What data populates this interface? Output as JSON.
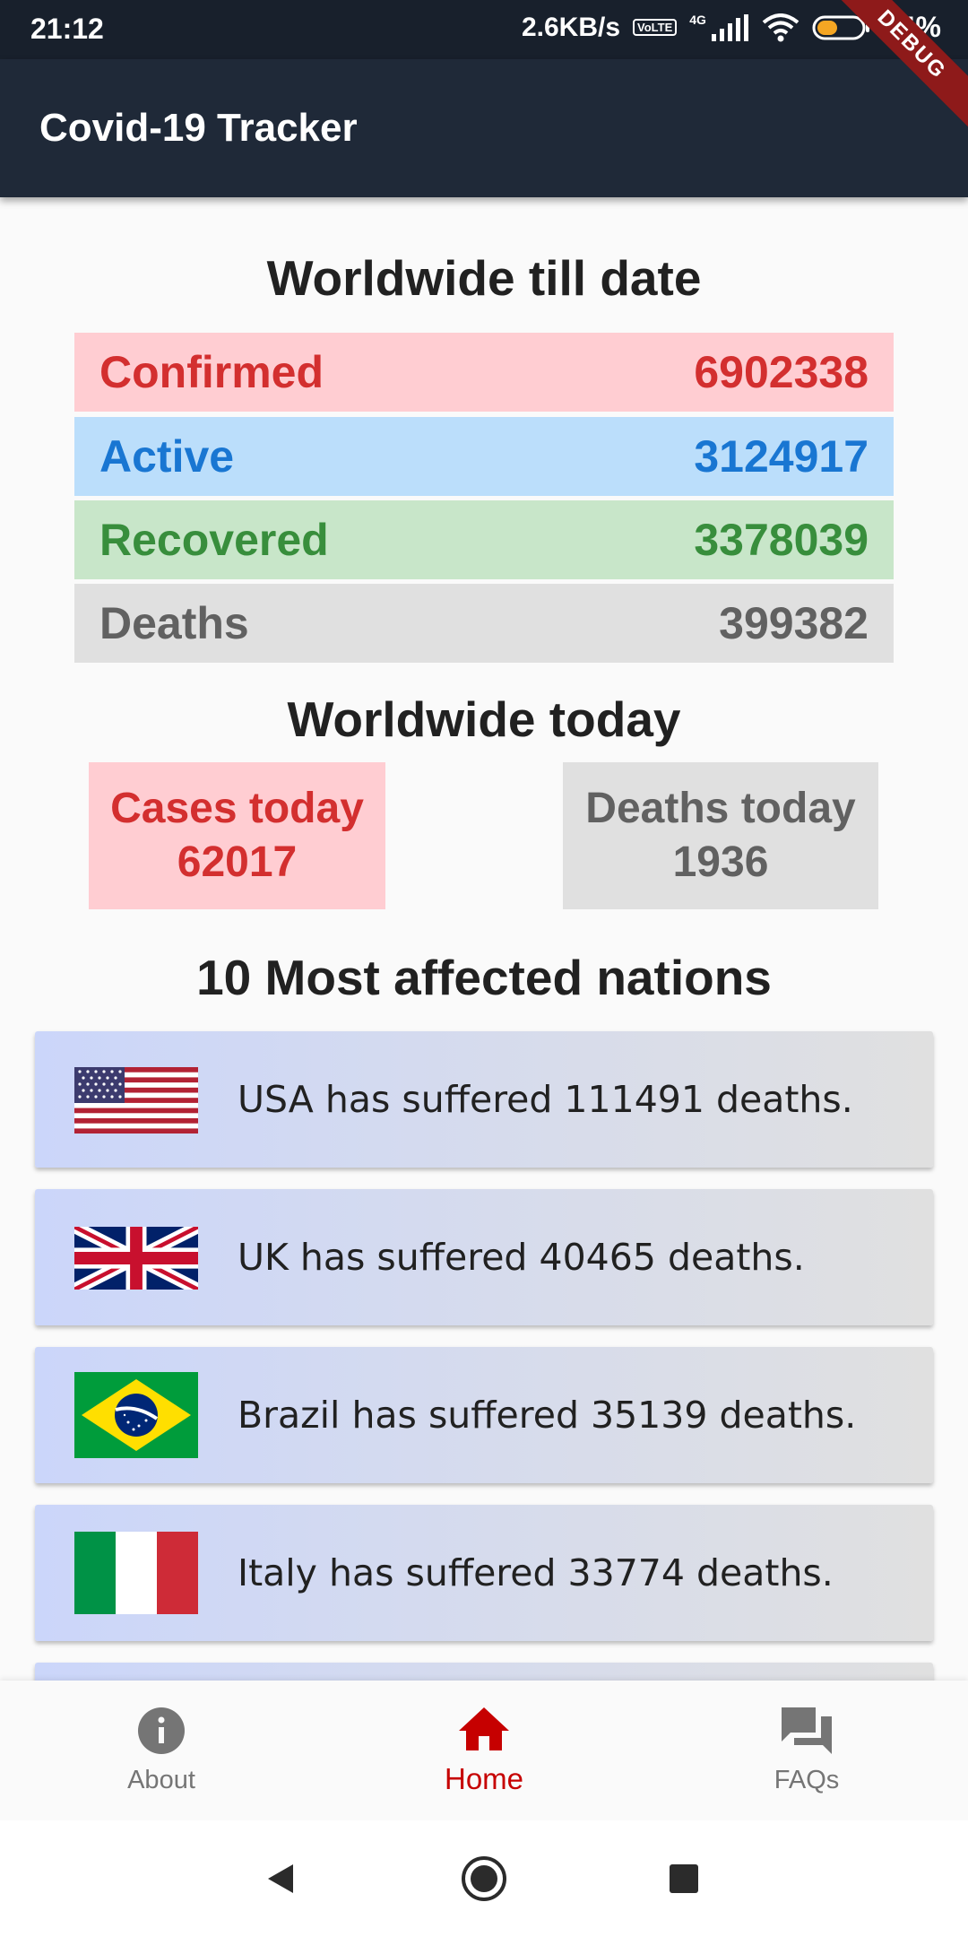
{
  "status_bar": {
    "time": "21:12",
    "network_speed": "2.6KB/s",
    "lte_badge": "VoLTE",
    "network_type": "4G",
    "battery": "44%",
    "icons": [
      "signal-icon",
      "wifi-icon",
      "battery-icon"
    ]
  },
  "app_bar": {
    "title": "Covid-19 Tracker",
    "debug_banner": "DEBUG",
    "background_color": "#1f2938"
  },
  "worldwide": {
    "title": "Worldwide till date",
    "confirmed": {
      "label": "Confirmed",
      "value": "6902338",
      "color": "#d32f2f",
      "bg": "#ffcdd2"
    },
    "active": {
      "label": "Active",
      "value": "3124917",
      "color": "#1976d2",
      "bg": "#bbdefb"
    },
    "recovered": {
      "label": "Recovered",
      "value": "3378039",
      "color": "#388e3c",
      "bg": "#c8e6c9"
    },
    "deaths": {
      "label": "Deaths",
      "value": "399382",
      "color": "#616161",
      "bg": "#e0e0e0"
    }
  },
  "today": {
    "title": "Worldwide today",
    "cases": {
      "label": "Cases today",
      "value": "62017"
    },
    "deaths": {
      "label": "Deaths today",
      "value": "1936"
    }
  },
  "nations": {
    "title": "10 Most affected nations",
    "items": [
      {
        "country": "USA",
        "text": "USA has suffered 111491 deaths.",
        "flag": "usa-flag-icon"
      },
      {
        "country": "UK",
        "text": "UK has suffered 40465 deaths.",
        "flag": "uk-flag-icon"
      },
      {
        "country": "Brazil",
        "text": "Brazil has suffered 35139 deaths.",
        "flag": "brazil-flag-icon"
      },
      {
        "country": "Italy",
        "text": "Italy has suffered 33774 deaths.",
        "flag": "italy-flag-icon"
      }
    ]
  },
  "bottom_nav": {
    "items": [
      {
        "label": "About",
        "icon": "info-icon"
      },
      {
        "label": "Home",
        "icon": "home-icon",
        "active": true
      },
      {
        "label": "FAQs",
        "icon": "forum-icon"
      }
    ],
    "active_color": "#c60000"
  },
  "system_nav": {
    "icons": [
      "back-icon",
      "home-circle-icon",
      "recents-icon"
    ]
  }
}
